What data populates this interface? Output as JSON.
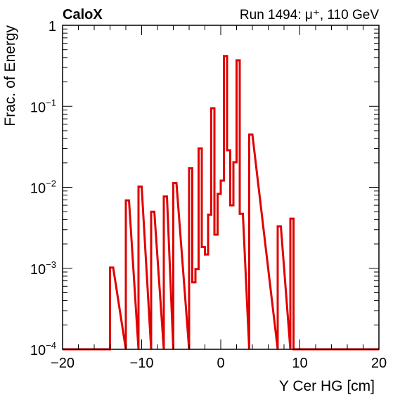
{
  "header": {
    "experiment": "CaloX",
    "run_info": "Run 1494:   μ⁺, 110 GeV"
  },
  "chart_data": {
    "type": "histogram",
    "xlabel": "Y Cer HG [cm]",
    "ylabel": "Frac. of Energy",
    "xlim": [
      -20,
      20
    ],
    "ylim": [
      0.0001,
      1
    ],
    "yscale": "log",
    "x_ticks": [
      {
        "value": -20,
        "label": "−20"
      },
      {
        "value": -10,
        "label": "−10"
      },
      {
        "value": 0,
        "label": "0"
      },
      {
        "value": 10,
        "label": "10"
      },
      {
        "value": 20,
        "label": "20"
      }
    ],
    "y_ticks": [
      {
        "exp": 0,
        "base": "1",
        "sup": ""
      },
      {
        "exp": -1,
        "base": "10",
        "sup": "−1"
      },
      {
        "exp": -2,
        "base": "10",
        "sup": "−2"
      },
      {
        "exp": -3,
        "base": "10",
        "sup": "−3"
      },
      {
        "exp": -4,
        "base": "10",
        "sup": "−4"
      }
    ],
    "line_color": "#e00000",
    "bin_width": 0.4,
    "bins": [
      {
        "x": -14.0,
        "y": 0.00102
      },
      {
        "x": -12.0,
        "y": 0.0069
      },
      {
        "x": -10.4,
        "y": 0.0102
      },
      {
        "x": -8.8,
        "y": 0.005
      },
      {
        "x": -7.2,
        "y": 0.0077
      },
      {
        "x": -6.0,
        "y": 0.0113
      },
      {
        "x": -4.0,
        "y": 0.0172
      },
      {
        "x": -3.6,
        "y": 0.00067
      },
      {
        "x": -3.2,
        "y": 0.00098
      },
      {
        "x": -2.8,
        "y": 0.0302
      },
      {
        "x": -2.4,
        "y": 0.00183
      },
      {
        "x": -2.0,
        "y": 0.00148
      },
      {
        "x": -1.6,
        "y": 0.0046
      },
      {
        "x": -1.2,
        "y": 0.0946
      },
      {
        "x": -0.8,
        "y": 0.0026
      },
      {
        "x": -0.4,
        "y": 0.0083
      },
      {
        "x": 0.0,
        "y": 0.0121
      },
      {
        "x": 0.4,
        "y": 0.417
      },
      {
        "x": 0.8,
        "y": 0.0286
      },
      {
        "x": 1.2,
        "y": 0.006
      },
      {
        "x": 1.6,
        "y": 0.0204
      },
      {
        "x": 2.0,
        "y": 0.369
      },
      {
        "x": 2.4,
        "y": 0.0047
      },
      {
        "x": 3.6,
        "y": 0.0449
      },
      {
        "x": 7.2,
        "y": 0.0033
      },
      {
        "x": 8.8,
        "y": 0.0041
      }
    ]
  }
}
